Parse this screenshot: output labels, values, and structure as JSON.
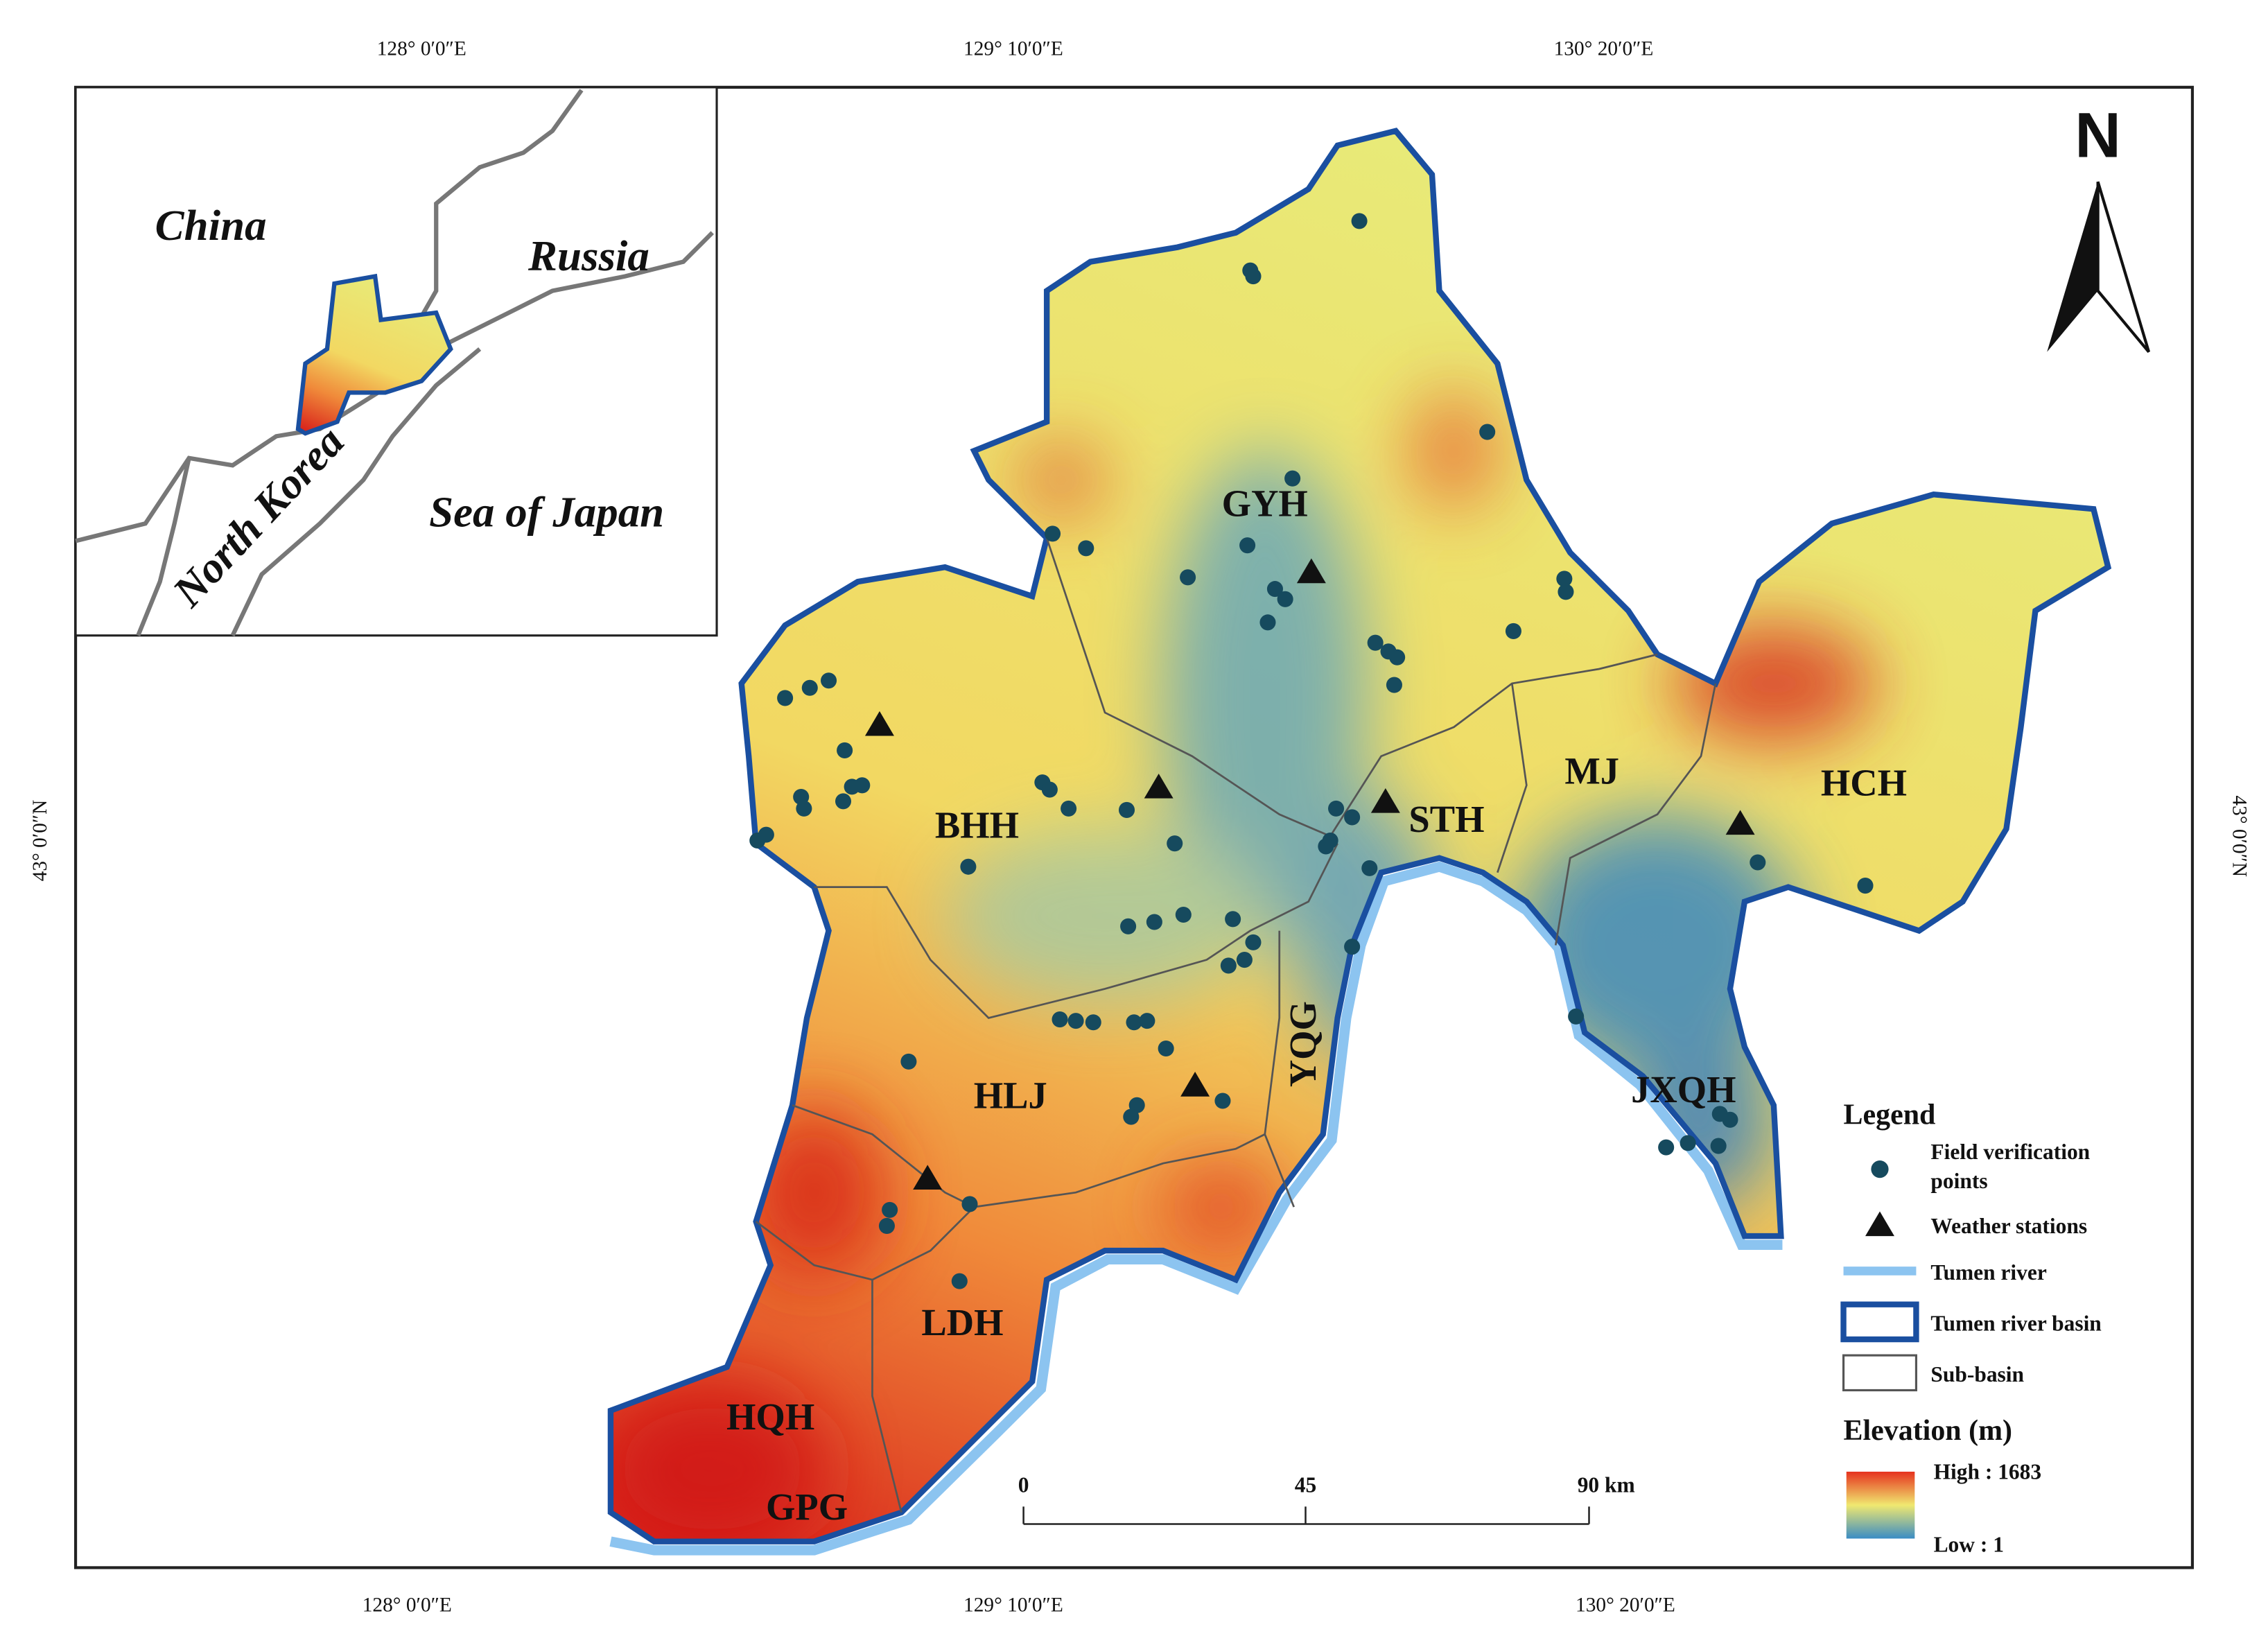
{
  "coordinate_labels": {
    "top": [
      "128° 0′0″E",
      "129° 10′0″E",
      "130° 20′0″E"
    ],
    "bottom": [
      "128° 0′0″E",
      "129° 10′0″E",
      "130° 20′0″E"
    ],
    "left": "43° 0′0″N",
    "right": "43° 0′0″N"
  },
  "inset": {
    "labels": [
      "China",
      "Russia",
      "North Korea",
      "Sea of Japan"
    ]
  },
  "north_arrow": "N",
  "sub_basins": [
    "GYH",
    "BHH",
    "STH",
    "MJ",
    "HCH",
    "YQG",
    "HLJ",
    "JXQH",
    "LDH",
    "HQH",
    "GPG"
  ],
  "legend": {
    "title": "Legend",
    "items": [
      "Field verification points",
      "Weather stations",
      "Tumen river",
      "Tumen river basin",
      "Sub-basin"
    ],
    "elevation_title": "Elevation (m)",
    "high": "High : 1683",
    "low": "Low : 1"
  },
  "scale_bar": [
    "0",
    "45",
    "90 km"
  ]
}
